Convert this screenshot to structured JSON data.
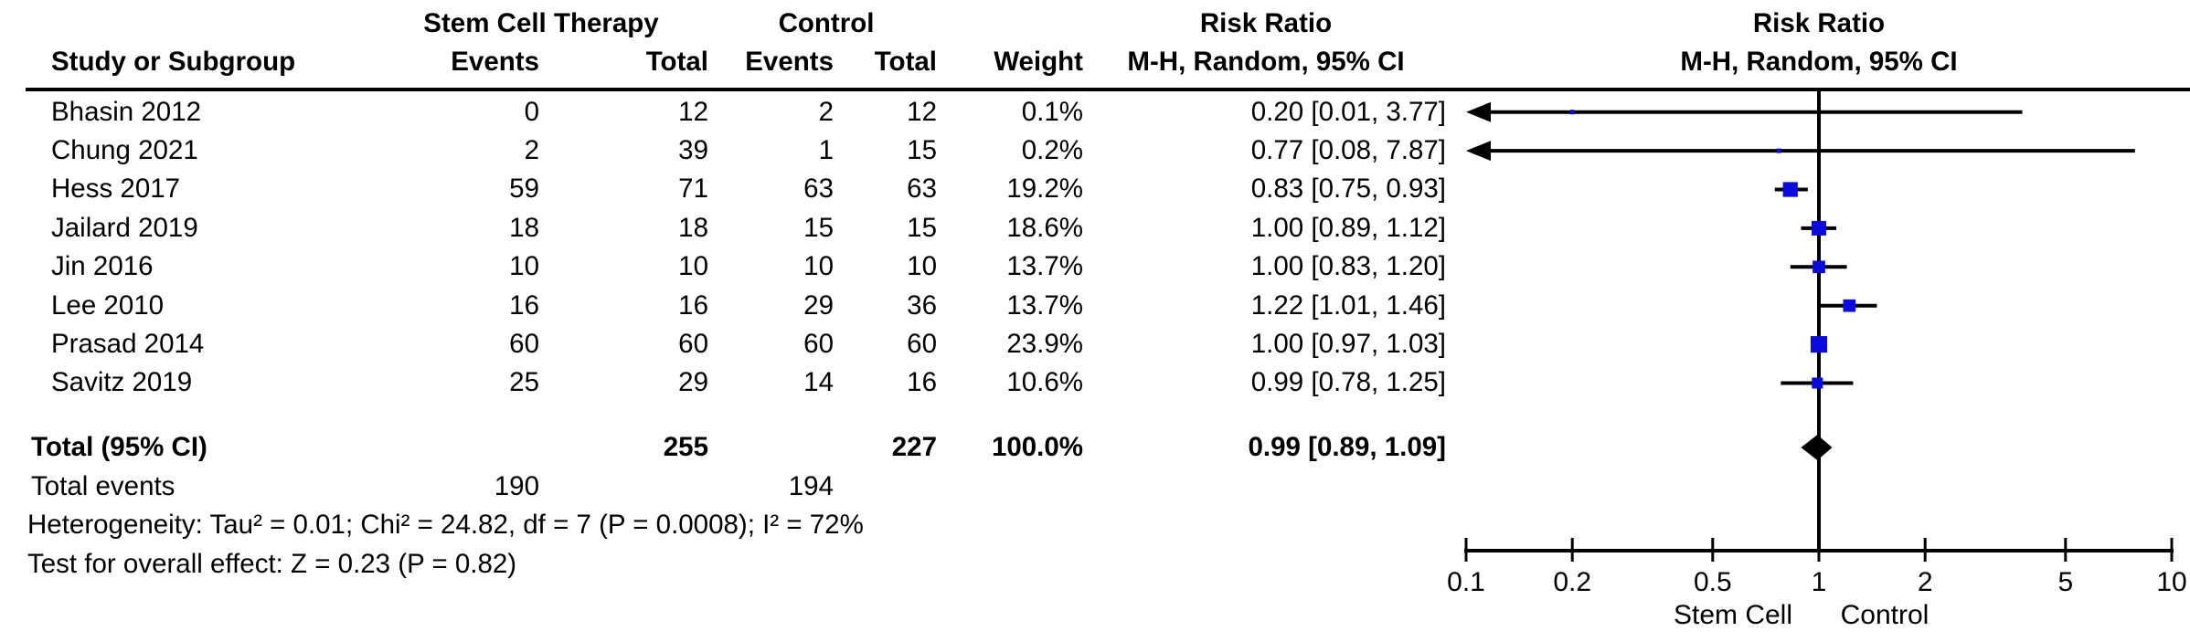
{
  "header": {
    "group1": "Stem Cell Therapy",
    "group2": "Control",
    "col_study": "Study or Subgroup",
    "col_events": "Events",
    "col_total": "Total",
    "col_weight": "Weight",
    "effect": "Risk Ratio",
    "method": "M-H, Random, 95% CI"
  },
  "chart_data": {
    "type": "forest",
    "effect_measure": "Risk Ratio",
    "model": "M-H, Random, 95% CI",
    "x_scale": "log",
    "x_range": [
      0.1,
      10
    ],
    "x_ticks": [
      0.1,
      0.2,
      0.5,
      1,
      2,
      5,
      10
    ],
    "favours_left": "Stem Cell",
    "favours_right": "Control",
    "marker_color": "#0b0bdd",
    "diamond_color": "#000000",
    "studies": [
      {
        "study": "Bhasin 2012",
        "events_tx": 0,
        "total_tx": 12,
        "events_ctrl": 2,
        "total_ctrl": 12,
        "weight_pct": 0.1,
        "rr": 0.2,
        "ci_low": 0.01,
        "ci_high": 3.77,
        "ci_text": "0.20 [0.01, 3.77]"
      },
      {
        "study": "Chung 2021",
        "events_tx": 2,
        "total_tx": 39,
        "events_ctrl": 1,
        "total_ctrl": 15,
        "weight_pct": 0.2,
        "rr": 0.77,
        "ci_low": 0.08,
        "ci_high": 7.87,
        "ci_text": "0.77 [0.08, 7.87]"
      },
      {
        "study": "Hess 2017",
        "events_tx": 59,
        "total_tx": 71,
        "events_ctrl": 63,
        "total_ctrl": 63,
        "weight_pct": 19.2,
        "rr": 0.83,
        "ci_low": 0.75,
        "ci_high": 0.93,
        "ci_text": "0.83 [0.75, 0.93]"
      },
      {
        "study": "Jailard 2019",
        "events_tx": 18,
        "total_tx": 18,
        "events_ctrl": 15,
        "total_ctrl": 15,
        "weight_pct": 18.6,
        "rr": 1.0,
        "ci_low": 0.89,
        "ci_high": 1.12,
        "ci_text": "1.00 [0.89, 1.12]"
      },
      {
        "study": "Jin 2016",
        "events_tx": 10,
        "total_tx": 10,
        "events_ctrl": 10,
        "total_ctrl": 10,
        "weight_pct": 13.7,
        "rr": 1.0,
        "ci_low": 0.83,
        "ci_high": 1.2,
        "ci_text": "1.00 [0.83, 1.20]"
      },
      {
        "study": "Lee 2010",
        "events_tx": 16,
        "total_tx": 16,
        "events_ctrl": 29,
        "total_ctrl": 36,
        "weight_pct": 13.7,
        "rr": 1.22,
        "ci_low": 1.01,
        "ci_high": 1.46,
        "ci_text": "1.22 [1.01, 1.46]"
      },
      {
        "study": "Prasad 2014",
        "events_tx": 60,
        "total_tx": 60,
        "events_ctrl": 60,
        "total_ctrl": 60,
        "weight_pct": 23.9,
        "rr": 1.0,
        "ci_low": 0.97,
        "ci_high": 1.03,
        "ci_text": "1.00 [0.97, 1.03]"
      },
      {
        "study": "Savitz 2019",
        "events_tx": 25,
        "total_tx": 29,
        "events_ctrl": 14,
        "total_ctrl": 16,
        "weight_pct": 10.6,
        "rr": 0.99,
        "ci_low": 0.78,
        "ci_high": 1.25,
        "ci_text": "0.99 [0.78, 1.25]"
      }
    ],
    "total": {
      "label": "Total (95% CI)",
      "total_tx": 255,
      "total_ctrl": 227,
      "weight_text": "100.0%",
      "rr": 0.99,
      "ci_low": 0.89,
      "ci_high": 1.09,
      "ci_text": "0.99 [0.89, 1.09]"
    },
    "total_events": {
      "label": "Total events",
      "events_tx": 190,
      "events_ctrl": 194
    },
    "heterogeneity": "Heterogeneity: Tau² = 0.01; Chi² = 24.82, df = 7 (P = 0.0008); I² = 72%",
    "overall_effect": "Test for overall effect: Z = 0.23 (P = 0.82)"
  }
}
